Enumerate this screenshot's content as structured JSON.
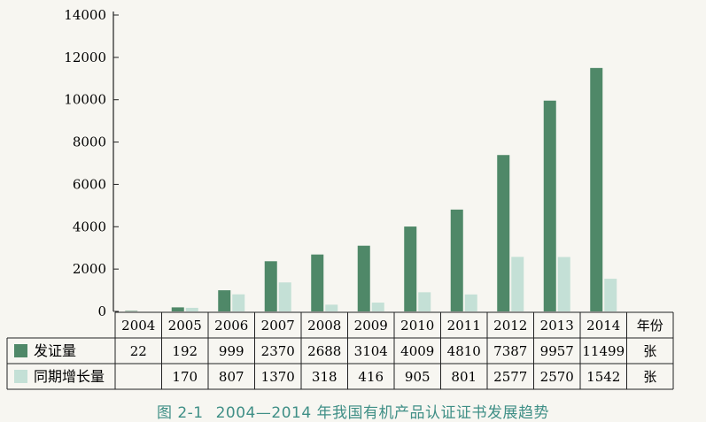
{
  "chart_data": {
    "type": "bar",
    "categories": [
      "2004",
      "2005",
      "2006",
      "2007",
      "2008",
      "2009",
      "2010",
      "2011",
      "2012",
      "2013",
      "2014"
    ],
    "series": [
      {
        "name": "发证量",
        "values": [
          22,
          192,
          999,
          2370,
          2688,
          3104,
          4009,
          4810,
          7387,
          9957,
          11499
        ],
        "color": "#4f8868",
        "unit": "张"
      },
      {
        "name": "同期增长量",
        "values": [
          null,
          170,
          807,
          1370,
          318,
          416,
          905,
          801,
          2577,
          2570,
          1542
        ],
        "color": "#c4e0d6",
        "unit": "张"
      }
    ],
    "ylim": [
      0,
      14000
    ],
    "yticks": [
      0,
      2000,
      4000,
      6000,
      8000,
      10000,
      12000,
      14000
    ],
    "table_header_last": "年份",
    "grid": false,
    "legend": "table-left"
  },
  "caption": {
    "figure_label": "图 2-1",
    "title": "2004—2014 年我国有机产品认证证书发展趋势"
  }
}
